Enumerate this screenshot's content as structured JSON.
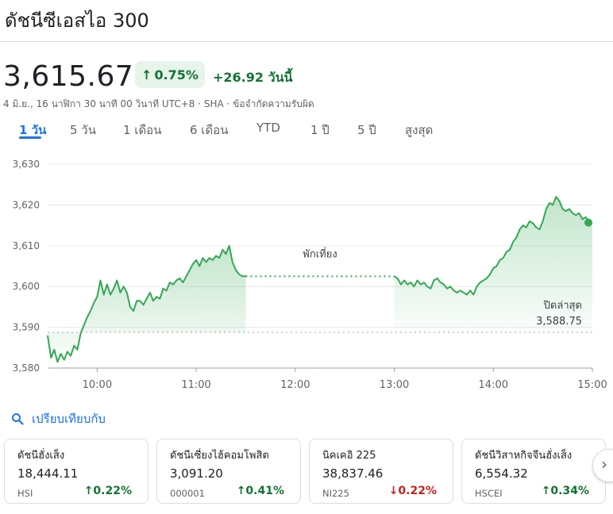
{
  "title": "ดัชนีซีเอสไอ 300",
  "price": "3,615.67",
  "badge": {
    "arrow": "↑",
    "pct": "0.75%"
  },
  "change_text": "+26.92 วันนี้",
  "meta": "4 มิ.ย., 16 นาฬิกา 30 นาที 00 วินาที UTC+8 · SHA · ข้อจำกัดความรับผิด",
  "tabs": [
    "1 วัน",
    "5 วัน",
    "1 เดือน",
    "6 เดือน",
    "YTD",
    "1 ปี",
    "5 ปี",
    "สูงสุด"
  ],
  "active_tab": "1 วัน",
  "compare_label": "เปรียบเทียบกับ",
  "colors": {
    "up": "#137333",
    "down": "#c5221f",
    "line": "#34a853",
    "accent": "#1a73e8"
  },
  "chart_data": {
    "type": "line",
    "y_ticks": [
      "3,630",
      "3,620",
      "3,610",
      "3,600",
      "3,590",
      "3,580"
    ],
    "ylim": [
      3580,
      3630
    ],
    "x_ticks": [
      "10:00",
      "11:00",
      "12:00",
      "13:00",
      "14:00",
      "15:00"
    ],
    "x_range": [
      "09:30",
      "15:00"
    ],
    "previous_close": 3588.75,
    "previous_close_label": "ปิดล่าสุด",
    "previous_close_text": "3,588.75",
    "break_label": "พักเที่ยง",
    "grid": true,
    "series": [
      {
        "values": [
          [
            "09:30",
            3588.0
          ],
          [
            "09:32",
            3582.5
          ],
          [
            "09:34",
            3584.5
          ],
          [
            "09:36",
            3581.5
          ],
          [
            "09:38",
            3583.5
          ],
          [
            "09:40",
            3582.0
          ],
          [
            "09:42",
            3584.0
          ],
          [
            "09:44",
            3583.0
          ],
          [
            "09:46",
            3585.5
          ],
          [
            "09:48",
            3584.5
          ],
          [
            "09:50",
            3588.5
          ],
          [
            "09:52",
            3590.5
          ],
          [
            "09:54",
            3592.5
          ],
          [
            "09:56",
            3594.0
          ],
          [
            "09:58",
            3596.0
          ],
          [
            "10:00",
            3597.5
          ],
          [
            "10:02",
            3601.5
          ],
          [
            "10:04",
            3598.0
          ],
          [
            "10:06",
            3600.5
          ],
          [
            "10:08",
            3598.0
          ],
          [
            "10:10",
            3599.5
          ],
          [
            "10:12",
            3601.5
          ],
          [
            "10:14",
            3598.5
          ],
          [
            "10:16",
            3600.0
          ],
          [
            "10:18",
            3598.5
          ],
          [
            "10:20",
            3595.0
          ],
          [
            "10:22",
            3594.0
          ],
          [
            "10:24",
            3596.5
          ],
          [
            "10:26",
            3596.5
          ],
          [
            "10:28",
            3595.5
          ],
          [
            "10:30",
            3597.0
          ],
          [
            "10:32",
            3598.5
          ],
          [
            "10:34",
            3596.5
          ],
          [
            "10:36",
            3597.5
          ],
          [
            "10:38",
            3597.0
          ],
          [
            "10:40",
            3599.5
          ],
          [
            "10:42",
            3599.0
          ],
          [
            "10:44",
            3601.0
          ],
          [
            "10:46",
            3600.5
          ],
          [
            "10:48",
            3601.5
          ],
          [
            "10:50",
            3602.0
          ],
          [
            "10:52",
            3601.0
          ],
          [
            "10:54",
            3602.5
          ],
          [
            "10:56",
            3604.0
          ],
          [
            "10:58",
            3605.5
          ],
          [
            "11:00",
            3606.5
          ],
          [
            "11:02",
            3605.0
          ],
          [
            "11:04",
            3607.0
          ],
          [
            "11:06",
            3606.0
          ],
          [
            "11:08",
            3607.0
          ],
          [
            "11:10",
            3606.5
          ],
          [
            "11:12",
            3607.5
          ],
          [
            "11:14",
            3607.0
          ],
          [
            "11:16",
            3609.0
          ],
          [
            "11:18",
            3608.0
          ],
          [
            "11:20",
            3610.0
          ],
          [
            "11:22",
            3606.0
          ],
          [
            "11:24",
            3604.0
          ],
          [
            "11:26",
            3603.0
          ],
          [
            "11:28",
            3602.5
          ],
          [
            "11:30",
            3602.5
          ],
          [
            "13:00",
            3602.5
          ],
          [
            "13:02",
            3602.0
          ],
          [
            "13:04",
            3600.5
          ],
          [
            "13:06",
            3601.5
          ],
          [
            "13:08",
            3600.5
          ],
          [
            "13:10",
            3601.0
          ],
          [
            "13:12",
            3600.0
          ],
          [
            "13:14",
            3601.5
          ],
          [
            "13:16",
            3600.5
          ],
          [
            "13:18",
            3601.0
          ],
          [
            "13:20",
            3600.0
          ],
          [
            "13:22",
            3599.5
          ],
          [
            "13:24",
            3601.5
          ],
          [
            "13:26",
            3602.0
          ],
          [
            "13:28",
            3601.0
          ],
          [
            "13:30",
            3600.5
          ],
          [
            "13:32",
            3599.5
          ],
          [
            "13:34",
            3600.0
          ],
          [
            "13:36",
            3599.0
          ],
          [
            "13:38",
            3598.5
          ],
          [
            "13:40",
            3599.0
          ],
          [
            "13:42",
            3598.5
          ],
          [
            "13:44",
            3598.0
          ],
          [
            "13:46",
            3599.0
          ],
          [
            "13:48",
            3598.0
          ],
          [
            "13:50",
            3600.0
          ],
          [
            "13:52",
            3601.0
          ],
          [
            "13:54",
            3601.5
          ],
          [
            "13:56",
            3602.0
          ],
          [
            "13:58",
            3603.0
          ],
          [
            "14:00",
            3604.5
          ],
          [
            "14:02",
            3605.0
          ],
          [
            "14:04",
            3606.5
          ],
          [
            "14:06",
            3607.0
          ],
          [
            "14:08",
            3608.5
          ],
          [
            "14:10",
            3609.0
          ],
          [
            "14:12",
            3611.0
          ],
          [
            "14:14",
            3612.0
          ],
          [
            "14:16",
            3614.0
          ],
          [
            "14:18",
            3615.0
          ],
          [
            "14:20",
            3614.5
          ],
          [
            "14:22",
            3616.0
          ],
          [
            "14:24",
            3615.5
          ],
          [
            "14:26",
            3614.5
          ],
          [
            "14:28",
            3614.0
          ],
          [
            "14:30",
            3616.0
          ],
          [
            "14:32",
            3619.0
          ],
          [
            "14:34",
            3620.5
          ],
          [
            "14:36",
            3620.0
          ],
          [
            "14:38",
            3622.0
          ],
          [
            "14:40",
            3621.0
          ],
          [
            "14:42",
            3619.0
          ],
          [
            "14:44",
            3618.5
          ],
          [
            "14:46",
            3619.0
          ],
          [
            "14:48",
            3618.0
          ],
          [
            "14:50",
            3617.5
          ],
          [
            "14:52",
            3618.0
          ],
          [
            "14:54",
            3616.5
          ],
          [
            "14:56",
            3617.0
          ],
          [
            "14:58",
            3616.0
          ],
          [
            "15:00",
            3615.67
          ]
        ]
      }
    ]
  },
  "cards": [
    {
      "name": "ดัชนีฮั่งเส็ง",
      "value": "18,444.11",
      "symbol": "HSI",
      "arrow": "↑",
      "pct": "0.22%",
      "direction": "up"
    },
    {
      "name": "ดัชนีเซี่ยงไฮ้คอมโพสิต",
      "value": "3,091.20",
      "symbol": "000001",
      "arrow": "↑",
      "pct": "0.41%",
      "direction": "up"
    },
    {
      "name": "นิคเคอิ 225",
      "value": "38,837.46",
      "symbol": "NI225",
      "arrow": "↓",
      "pct": "0.22%",
      "direction": "down"
    },
    {
      "name": "ดัชนีวิสาหกิจจีนฮั่งเส็ง",
      "value": "6,554.32",
      "symbol": "HSCEI",
      "arrow": "↑",
      "pct": "0.34%",
      "direction": "up"
    }
  ]
}
